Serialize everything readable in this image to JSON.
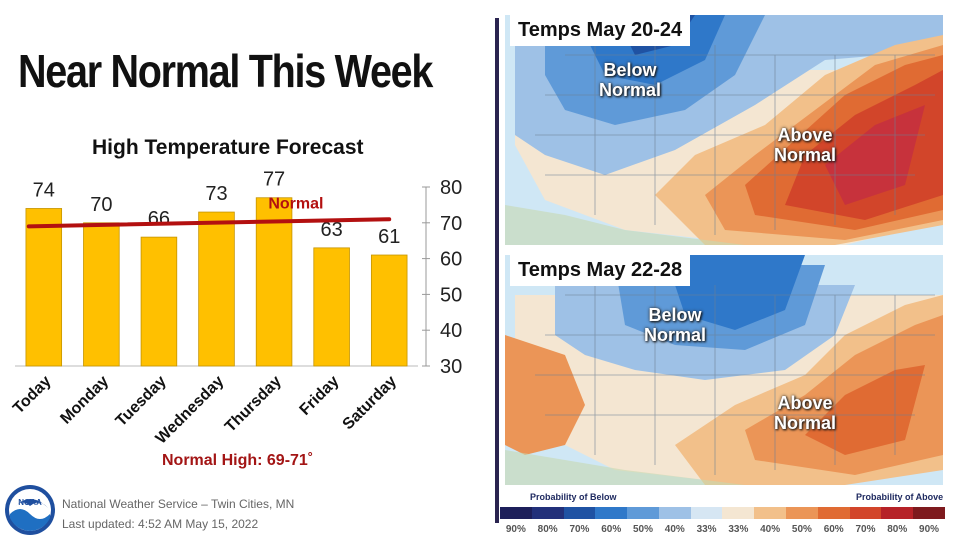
{
  "headline": "Near Normal This Week",
  "chart_data": {
    "type": "bar",
    "title": "High Temperature Forecast",
    "categories": [
      "Today",
      "Monday",
      "Tuesday",
      "Wednesday",
      "Thursday",
      "Friday",
      "Saturday"
    ],
    "values": [
      74,
      70,
      66,
      73,
      77,
      63,
      61
    ],
    "y_ticks": [
      80,
      70,
      60,
      50,
      40,
      30
    ],
    "ylim": [
      30,
      80
    ],
    "normal_line": {
      "label": "Normal",
      "start": 69,
      "end": 71,
      "color": "#b31010"
    },
    "bar_color": "#ffc000",
    "grid": false
  },
  "normal_high": "Normal High: 69-71˚",
  "credit": {
    "office": "National Weather Service – Twin Cities, MN",
    "updated": "Last updated: 4:52 AM May 15, 2022"
  },
  "logo_text": "NOAA",
  "maps": [
    {
      "title": "Temps May 20-24",
      "below_label": "Below Normal",
      "above_label": "Above Normal"
    },
    {
      "title": "Temps May 22-28",
      "below_label": "Below Normal",
      "above_label": "Above Normal"
    }
  ],
  "legend": {
    "below_caption": "Probability of Below",
    "above_caption": "Probability of Above",
    "ticks": [
      "90%",
      "80%",
      "70%",
      "60%",
      "50%",
      "40%",
      "33%",
      "33%",
      "40%",
      "50%",
      "60%",
      "70%",
      "80%",
      "90%"
    ],
    "colors": [
      "#1d1f5a",
      "#22307a",
      "#1f52a3",
      "#2f78c9",
      "#5f9ad8",
      "#9ec1e6",
      "#d6e6f3",
      "#f4e6d2",
      "#f2c08a",
      "#eb9557",
      "#e06b33",
      "#d2452a",
      "#b62228",
      "#7e1a1e"
    ]
  }
}
